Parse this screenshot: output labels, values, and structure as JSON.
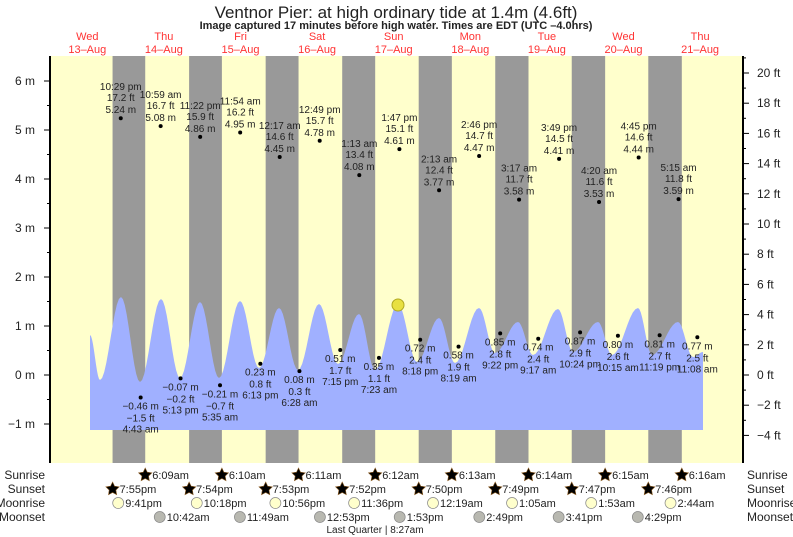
{
  "chart_data": {
    "type": "line",
    "title": "Ventnor Pier: at high  ordinary tide at 1.4m (4.6ft)",
    "subtitle": "Image captured 17 minutes before high water. Times are EDT (UTC –4.0hrs)",
    "days": [
      {
        "dow": "Wed",
        "date": "13–Aug"
      },
      {
        "dow": "Thu",
        "date": "14–Aug"
      },
      {
        "dow": "Fri",
        "date": "15–Aug"
      },
      {
        "dow": "Sat",
        "date": "16–Aug"
      },
      {
        "dow": "Sun",
        "date": "17–Aug"
      },
      {
        "dow": "Mon",
        "date": "18–Aug"
      },
      {
        "dow": "Tue",
        "date": "19–Aug"
      },
      {
        "dow": "Wed",
        "date": "20–Aug"
      },
      {
        "dow": "Thu",
        "date": "21–Aug"
      }
    ],
    "y_left": {
      "unit": "m",
      "ylim": [
        -1,
        6
      ],
      "ticks": [
        "−1 m",
        "0 m",
        "1 m",
        "2 m",
        "3 m",
        "4 m",
        "5 m",
        "6 m"
      ]
    },
    "y_right": {
      "unit": "ft",
      "ticks": [
        "−4 ft",
        "−2 ft",
        "0 ft",
        "2 ft",
        "4 ft",
        "6 ft",
        "8 ft",
        "10 ft",
        "12 ft",
        "14 ft",
        "16 ft",
        "18 ft",
        "20 ft"
      ]
    },
    "extremes": [
      {
        "type": "high",
        "day": 0,
        "time": "10:29 pm",
        "ft": "17.2 ft",
        "m": "5.24 m",
        "value": 5.24
      },
      {
        "type": "low",
        "day": 1,
        "time": "4:43 am",
        "ft": "−1.5 ft",
        "m": "−0.46 m",
        "value": -0.46
      },
      {
        "type": "high",
        "day": 1,
        "time": "10:59 am",
        "ft": "16.7 ft",
        "m": "5.08 m",
        "value": 5.08
      },
      {
        "type": "low",
        "day": 1,
        "time": "5:13 pm",
        "ft": "−0.2 ft",
        "m": "−0.07 m",
        "value": -0.07
      },
      {
        "type": "high",
        "day": 1,
        "time": "11:22 pm",
        "ft": "15.9 ft",
        "m": "4.86 m",
        "value": 4.86
      },
      {
        "type": "low",
        "day": 2,
        "time": "5:35 am",
        "ft": "−0.7 ft",
        "m": "−0.21 m",
        "value": -0.21
      },
      {
        "type": "high",
        "day": 2,
        "time": "11:54 am",
        "ft": "16.2 ft",
        "m": "4.95 m",
        "value": 4.95
      },
      {
        "type": "low",
        "day": 2,
        "time": "6:13 pm",
        "ft": "0.8 ft",
        "m": "0.23 m",
        "value": 0.23
      },
      {
        "type": "high",
        "day": 3,
        "time": "12:17 am",
        "ft": "14.6 ft",
        "m": "4.45 m",
        "value": 4.45
      },
      {
        "type": "low",
        "day": 3,
        "time": "6:28 am",
        "ft": "0.3 ft",
        "m": "0.08 m",
        "value": 0.08
      },
      {
        "type": "high",
        "day": 3,
        "time": "12:49 pm",
        "ft": "15.7 ft",
        "m": "4.78 m",
        "value": 4.78
      },
      {
        "type": "low",
        "day": 3,
        "time": "7:15 pm",
        "ft": "1.7 ft",
        "m": "0.51 m",
        "value": 0.51
      },
      {
        "type": "high",
        "day": 4,
        "time": "1:13 am",
        "ft": "13.4 ft",
        "m": "4.08 m",
        "value": 4.08
      },
      {
        "type": "low",
        "day": 4,
        "time": "7:23 am",
        "ft": "1.1 ft",
        "m": "0.35 m",
        "value": 0.35
      },
      {
        "type": "high",
        "day": 4,
        "time": "1:47 pm",
        "ft": "15.1 ft",
        "m": "4.61 m",
        "value": 4.61
      },
      {
        "type": "low",
        "day": 4,
        "time": "8:18 pm",
        "ft": "2.4 ft",
        "m": "0.72 m",
        "value": 0.72
      },
      {
        "type": "high",
        "day": 5,
        "time": "2:13 am",
        "ft": "12.4 ft",
        "m": "3.77 m",
        "value": 3.77
      },
      {
        "type": "low",
        "day": 5,
        "time": "8:19 am",
        "ft": "1.9 ft",
        "m": "0.58 m",
        "value": 0.58
      },
      {
        "type": "high",
        "day": 5,
        "time": "2:46 pm",
        "ft": "14.7 ft",
        "m": "4.47 m",
        "value": 4.47
      },
      {
        "type": "low",
        "day": 5,
        "time": "9:22 pm",
        "ft": "2.8 ft",
        "m": "0.85 m",
        "value": 0.85
      },
      {
        "type": "high",
        "day": 6,
        "time": "3:17 am",
        "ft": "11.7 ft",
        "m": "3.58 m",
        "value": 3.58
      },
      {
        "type": "low",
        "day": 6,
        "time": "9:17 am",
        "ft": "2.4 ft",
        "m": "0.74 m",
        "value": 0.74
      },
      {
        "type": "high",
        "day": 6,
        "time": "3:49 pm",
        "ft": "14.5 ft",
        "m": "4.41 m",
        "value": 4.41
      },
      {
        "type": "low",
        "day": 6,
        "time": "10:24 pm",
        "ft": "2.9 ft",
        "m": "0.87 m",
        "value": 0.87
      },
      {
        "type": "high",
        "day": 7,
        "time": "4:20 am",
        "ft": "11.6 ft",
        "m": "3.53 m",
        "value": 3.53
      },
      {
        "type": "low",
        "day": 7,
        "time": "10:15 am",
        "ft": "2.6 ft",
        "m": "0.80 m",
        "value": 0.8
      },
      {
        "type": "high",
        "day": 7,
        "time": "4:45 pm",
        "ft": "14.6 ft",
        "m": "4.44 m",
        "value": 4.44
      },
      {
        "type": "low",
        "day": 7,
        "time": "11:19 pm",
        "ft": "2.7 ft",
        "m": "0.81 m",
        "value": 0.81
      },
      {
        "type": "high",
        "day": 8,
        "time": "5:15 am",
        "ft": "11.8 ft",
        "m": "3.59 m",
        "value": 3.59
      },
      {
        "type": "low",
        "day": 8,
        "time": "11:08 am",
        "ft": "2.5 ft",
        "m": "0.77 m",
        "value": 0.77
      }
    ],
    "astro_labels": {
      "sunrise": "Sunrise",
      "sunset": "Sunset",
      "moonrise": "Moonrise",
      "moonset": "Moonset"
    },
    "sunrise": [
      {
        "day": 1,
        "time": "6:09am"
      },
      {
        "day": 2,
        "time": "6:10am"
      },
      {
        "day": 3,
        "time": "6:11am"
      },
      {
        "day": 4,
        "time": "6:12am"
      },
      {
        "day": 5,
        "time": "6:13am"
      },
      {
        "day": 6,
        "time": "6:14am"
      },
      {
        "day": 7,
        "time": "6:15am"
      },
      {
        "day": 8,
        "time": "6:16am"
      }
    ],
    "sunset": [
      {
        "day": 0,
        "time": "7:55pm"
      },
      {
        "day": 1,
        "time": "7:54pm"
      },
      {
        "day": 2,
        "time": "7:53pm"
      },
      {
        "day": 3,
        "time": "7:52pm"
      },
      {
        "day": 4,
        "time": "7:50pm"
      },
      {
        "day": 5,
        "time": "7:49pm"
      },
      {
        "day": 6,
        "time": "7:47pm"
      },
      {
        "day": 7,
        "time": "7:46pm"
      }
    ],
    "moonrise": [
      {
        "day": 0,
        "time": "9:41pm"
      },
      {
        "day": 1,
        "time": "10:18pm"
      },
      {
        "day": 2,
        "time": "10:56pm"
      },
      {
        "day": 3,
        "time": "11:36pm"
      },
      {
        "day": 5,
        "time": "12:19am"
      },
      {
        "day": 6,
        "time": "1:05am"
      },
      {
        "day": 7,
        "time": "1:53am"
      },
      {
        "day": 8,
        "time": "2:44am"
      }
    ],
    "moonset": [
      {
        "day": 1,
        "time": "10:42am"
      },
      {
        "day": 2,
        "time": "11:49am"
      },
      {
        "day": 3,
        "time": "12:53pm"
      },
      {
        "day": 4,
        "time": "1:53pm"
      },
      {
        "day": 5,
        "time": "2:49pm"
      },
      {
        "day": 6,
        "time": "3:41pm"
      },
      {
        "day": 7,
        "time": "4:29pm"
      }
    ],
    "moon_phase": "Last Quarter | 8:27am",
    "colors": {
      "day": "#ffffcc",
      "night": "#999999",
      "water": "#a0b0ff",
      "daylabel": "#ff3333",
      "sunrise": "#b5a82c",
      "sunset": "#d8452a",
      "moonrise": "#ffffcc",
      "moonset": "#b8b8b0",
      "marker": "#e8e040"
    }
  }
}
